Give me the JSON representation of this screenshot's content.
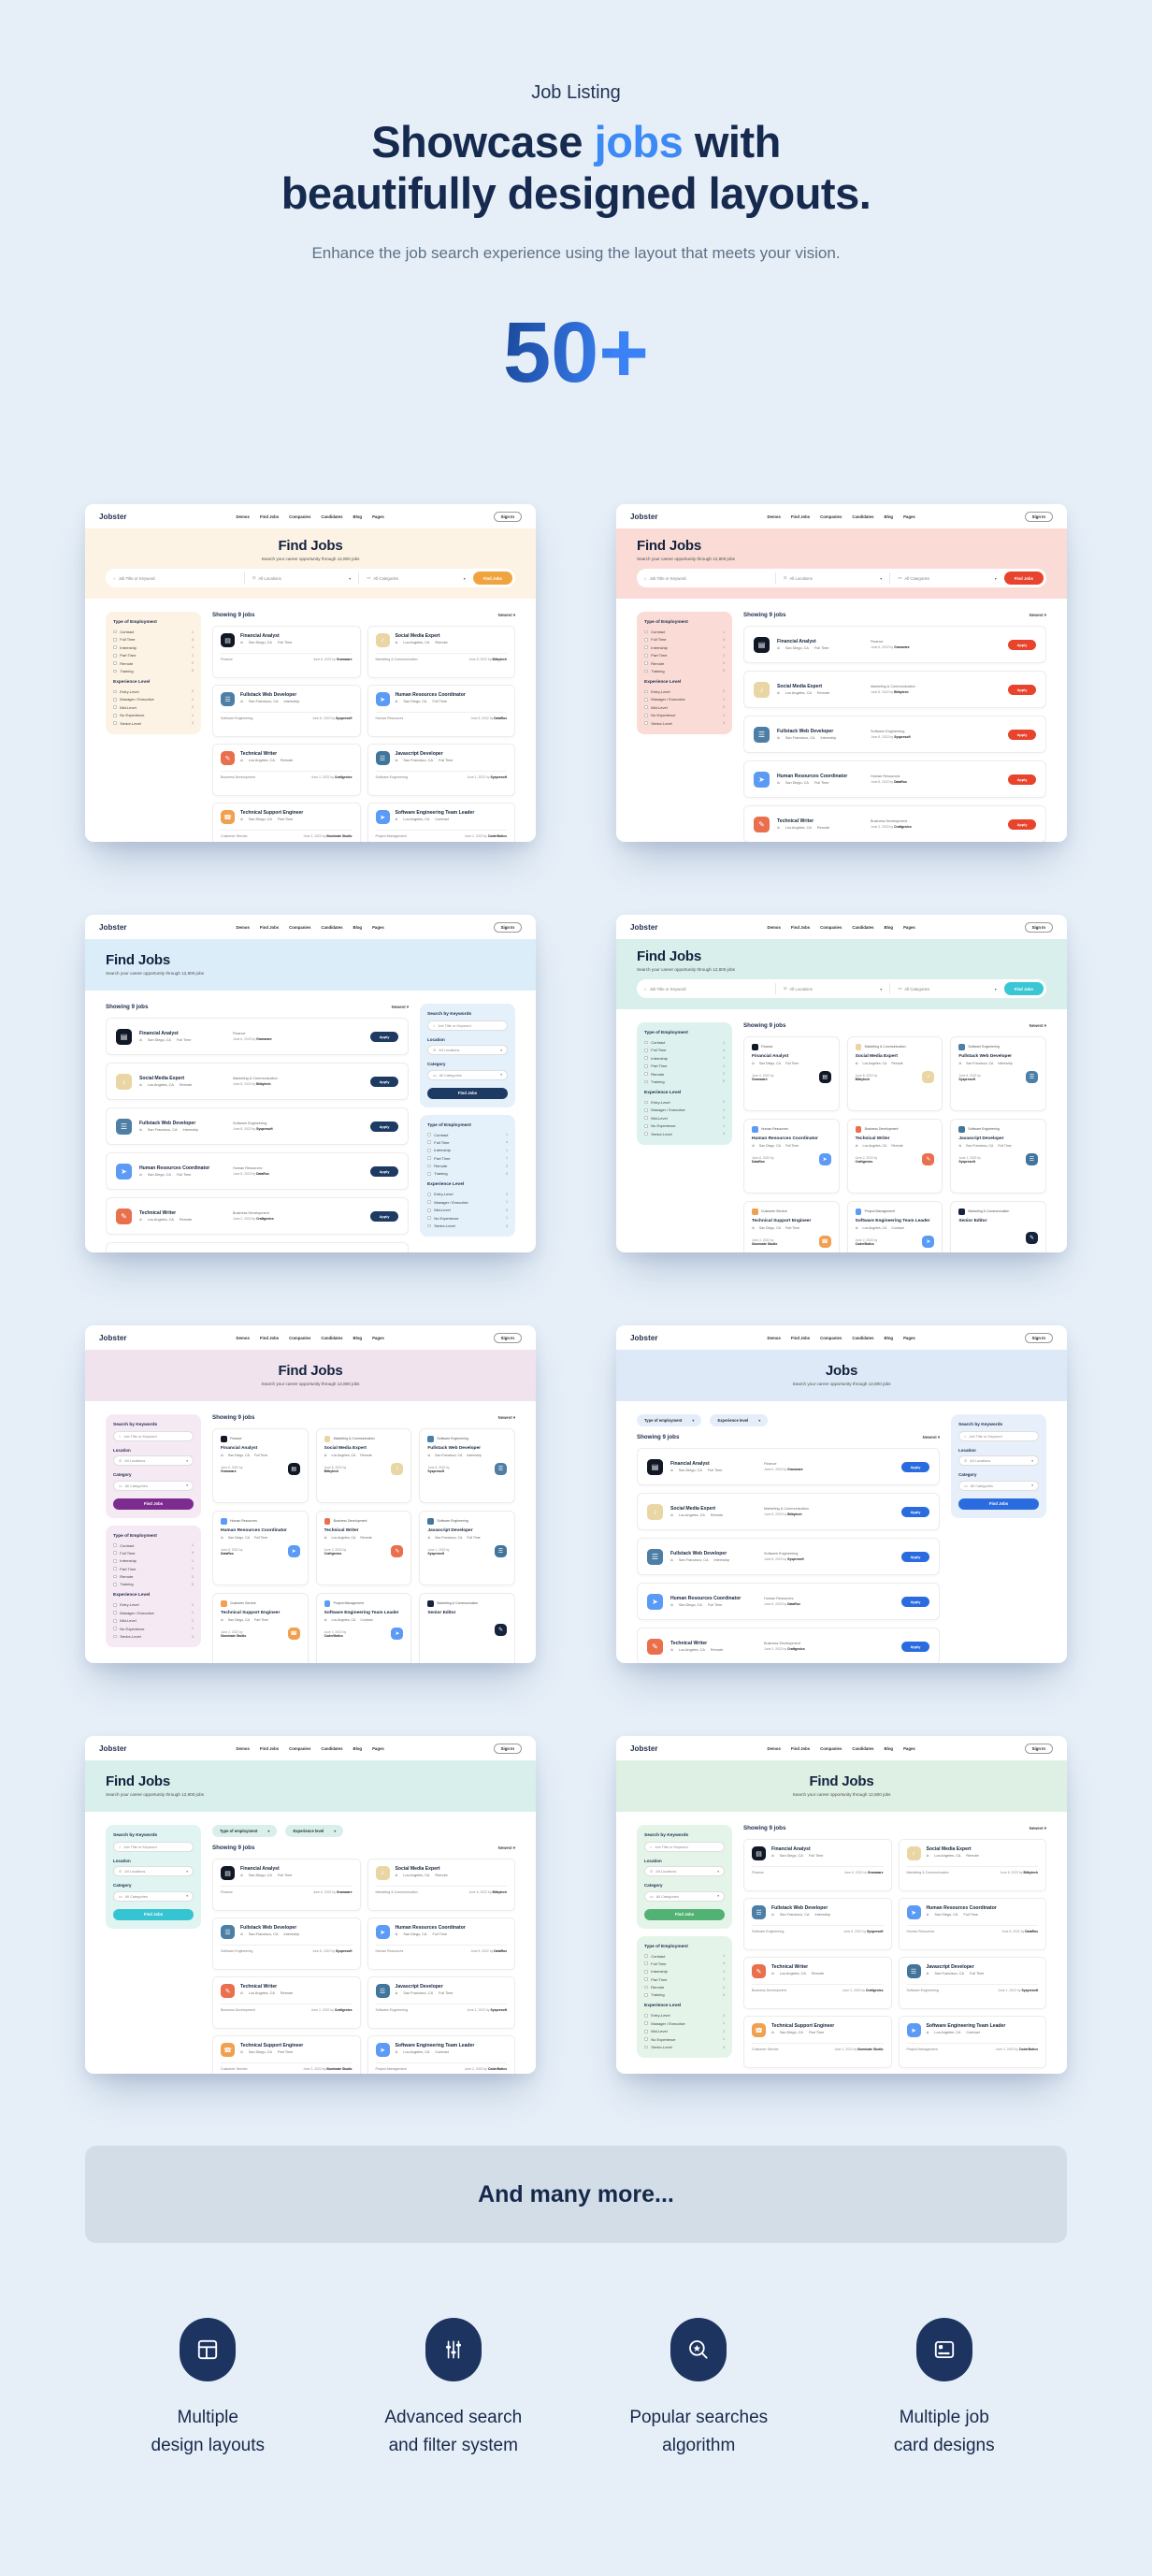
{
  "header": {
    "eyebrow": "Job Listing",
    "title_line1_pre": "Showcase ",
    "title_line1_accent": "jobs",
    "title_line1_post": " with",
    "title_line2": "beautifully designed layouts.",
    "subtitle": "Enhance the job search experience using the layout that meets your vision.",
    "count": "50+",
    "accent_color": "#3e8af5"
  },
  "banner": {
    "text": "And many more...",
    "bg": "#d2dde8"
  },
  "features": [
    {
      "icon": "layout-grid-icon",
      "line1": "Multiple",
      "line2": "design layouts"
    },
    {
      "icon": "filter-sliders-icon",
      "line1": "Advanced search",
      "line2": "and filter system"
    },
    {
      "icon": "search-star-icon",
      "line1": "Popular searches",
      "line2": "algorithm"
    },
    {
      "icon": "job-card-icon",
      "line1": "Multiple job",
      "line2": "card designs"
    }
  ],
  "mini": {
    "brand": "Jobster",
    "nav": [
      "Demos",
      "Find Jobs",
      "Companies",
      "Candidates",
      "Blog",
      "Pages"
    ],
    "sign_in": "Sign In",
    "hero_subtitle": "Search your career opportunity through 12,800 jobs",
    "search_placeholder": "Job Title or Keyword",
    "all_locations": "All Locations",
    "all_categories": "All Categories",
    "find_jobs": "Find Jobs",
    "search_by_keywords": "Search by Keywords",
    "location_label": "Location",
    "category_label": "Category",
    "showing": "Showing",
    "showing_count": "9",
    "jobs_word": "jobs",
    "sort": "Newest",
    "apply": "Apply",
    "pills": [
      "Type of employment",
      "Experience level"
    ],
    "employment_title": "Type of Employment",
    "employment": [
      {
        "label": "Contract",
        "count": "1"
      },
      {
        "label": "Full Time",
        "count": "4"
      },
      {
        "label": "Internship",
        "count": "1"
      },
      {
        "label": "Part Time",
        "count": "1"
      },
      {
        "label": "Remote",
        "count": "2"
      },
      {
        "label": "Training",
        "count": "0"
      }
    ],
    "experience_title": "Experience Level",
    "experience": [
      {
        "label": "Entry-Level",
        "count": "2"
      },
      {
        "label": "Manager / Executive",
        "count": "1"
      },
      {
        "label": "Mid-Level",
        "count": "2"
      },
      {
        "label": "No Experience",
        "count": "1"
      },
      {
        "label": "Senior-Level",
        "count": "3"
      }
    ]
  },
  "jobs": [
    {
      "title": "Financial Analyst",
      "location": "San Diego, CA",
      "type": "Full Time",
      "category": "Finance",
      "date": "June 6, 2022",
      "company": "Gramware",
      "icon_bg": "#101826",
      "glyph": "▤"
    },
    {
      "title": "Social Media Expert",
      "location": "Los Angeles, CA",
      "type": "Remote",
      "category": "Marketing & Communication",
      "date": "June 8, 2022",
      "company": "Bitbytech",
      "icon_bg": "#e9d6a4",
      "glyph": "♪"
    },
    {
      "title": "Fullstack Web Developer",
      "location": "San Francisco, CA",
      "type": "Internship",
      "category": "Software Engineering",
      "date": "June 8, 2022",
      "company": "Syspresoft",
      "icon_bg": "#4d7fa6",
      "glyph": "☰"
    },
    {
      "title": "Human Resources Coordinator",
      "location": "San Diego, CA",
      "type": "Full Time",
      "category": "Human Resources",
      "date": "June 8, 2022",
      "company": "DataRos",
      "icon_bg": "#5b9bf5",
      "glyph": "➤"
    },
    {
      "title": "Technical Writer",
      "location": "Los Angeles, CA",
      "type": "Remote",
      "category": "Business Development",
      "date": "June 2, 2022",
      "company": "Craftgenics",
      "icon_bg": "#e96f4d",
      "glyph": "✎"
    },
    {
      "title": "Javascript Developer",
      "location": "San Francisco, CA",
      "type": "Full Time",
      "category": "Software Engineering",
      "date": "June 1, 2022",
      "company": "Syspresoft",
      "icon_bg": "#41759c",
      "glyph": "☰"
    },
    {
      "title": "Technical Support Engineer",
      "location": "San Diego, CA",
      "type": "Part Time",
      "category": "Customer Service",
      "date": "June 2, 2022",
      "company": "Illuminate Studio",
      "icon_bg": "#f0a04f",
      "glyph": "☎"
    },
    {
      "title": "Software Engineering Team Leader",
      "location": "Los Angeles, CA",
      "type": "Contract",
      "category": "Project Management",
      "date": "June 2, 2022",
      "company": "CoderBotics",
      "icon_bg": "#5b9bf5",
      "glyph": "➤"
    },
    {
      "title": "Senior Editor",
      "location": "",
      "type": "",
      "category": "Marketing & Communication",
      "date": "",
      "company": "",
      "icon_bg": "#16233c",
      "glyph": "✎"
    }
  ],
  "thumbnails": [
    {
      "name": "cream-classic",
      "layout": "cards2",
      "hero_align": "center",
      "hero_search": true,
      "title": "Find Jobs",
      "colors": {
        "hero": "#fdf3e4",
        "side": "#fdf3e4",
        "btn": "#f0a43e",
        "apply": "#f0a43e",
        "pill": "#f6ead6"
      },
      "left": [
        "filters"
      ],
      "right": [],
      "pills": false,
      "jobs": [
        0,
        1,
        2,
        3,
        4,
        5,
        6,
        7
      ]
    },
    {
      "name": "coral-list",
      "layout": "list",
      "hero_align": "left",
      "hero_search": true,
      "title": "Find Jobs",
      "colors": {
        "hero": "#fbdbd5",
        "side": "#fbdbd5",
        "btn": "#e8432c",
        "apply": "#e8432c",
        "pill": "#fbe4df"
      },
      "left": [
        "filters"
      ],
      "right": [],
      "pills": false,
      "jobs": [
        0,
        1,
        2,
        3,
        4,
        5
      ]
    },
    {
      "name": "sky-list-right-sidebar",
      "layout": "list",
      "hero_align": "left",
      "hero_search": false,
      "title": "Find Jobs",
      "colors": {
        "hero": "#dcedfa",
        "side": "#e4f1fb",
        "btn": "#1d3a63",
        "apply": "#1d3a63",
        "pill": "#e4f1fb"
      },
      "left": [],
      "right": [
        "search",
        "filters"
      ],
      "pills": false,
      "jobs": [
        0,
        1,
        2,
        3,
        4,
        5
      ]
    },
    {
      "name": "mint-grid3",
      "layout": "cards3",
      "hero_align": "left",
      "hero_search": true,
      "title": "Find Jobs",
      "colors": {
        "hero": "#d8efec",
        "side": "#ddf2ee",
        "btn": "#38c7d3",
        "apply": "#38c7d3",
        "pill": "#ddf2ee"
      },
      "left": [
        "filters"
      ],
      "right": [],
      "pills": false,
      "jobs": [
        0,
        1,
        2,
        3,
        4,
        5,
        6,
        7,
        8
      ]
    },
    {
      "name": "lavender-grid3",
      "layout": "cards3",
      "hero_align": "center",
      "hero_search": false,
      "title": "Find Jobs",
      "colors": {
        "hero": "#f0e3ee",
        "side": "#f5e9f3",
        "btn": "#7c2c8e",
        "apply": "#7c2c8e",
        "pill": "#f5e9f3"
      },
      "left": [
        "search",
        "filters"
      ],
      "right": [],
      "pills": false,
      "jobs": [
        0,
        1,
        2,
        3,
        4,
        5,
        6,
        7,
        8
      ]
    },
    {
      "name": "blue-list-pills",
      "layout": "list",
      "hero_align": "center",
      "hero_search": false,
      "title": "Jobs",
      "colors": {
        "hero": "#dde9f6",
        "side": "#e7f0fa",
        "btn": "#2a6ce0",
        "apply": "#2a6ce0",
        "pill": "#e4eefa"
      },
      "left": [],
      "right": [
        "search"
      ],
      "pills": true,
      "jobs": [
        0,
        1,
        2,
        3,
        4,
        5
      ]
    },
    {
      "name": "mint-grid2-pills",
      "layout": "cards2",
      "hero_align": "left",
      "hero_search": false,
      "title": "Find Jobs",
      "colors": {
        "hero": "#d8efec",
        "side": "#e0f4f1",
        "btn": "#35c5d2",
        "apply": "#35c5d2",
        "pill": "#d8efec"
      },
      "left": [
        "search"
      ],
      "right": [],
      "pills": true,
      "jobs": [
        0,
        1,
        2,
        3,
        4,
        5,
        6,
        7
      ]
    },
    {
      "name": "green-grid2",
      "layout": "cards2",
      "hero_align": "center",
      "hero_search": false,
      "title": "Find Jobs",
      "colors": {
        "hero": "#def0e3",
        "side": "#e4f4e9",
        "btn": "#52b274",
        "apply": "#52b274",
        "pill": "#e4f4e9"
      },
      "left": [
        "search",
        "filters"
      ],
      "right": [],
      "pills": false,
      "jobs": [
        0,
        1,
        2,
        3,
        4,
        5,
        6,
        7
      ]
    }
  ]
}
